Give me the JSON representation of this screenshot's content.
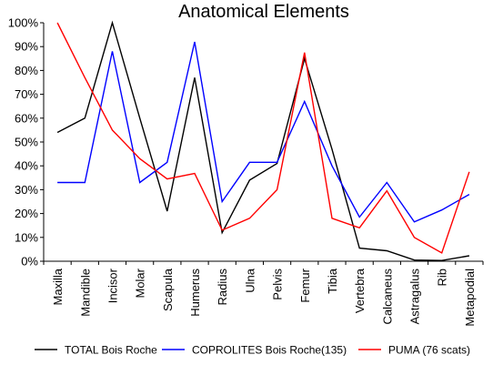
{
  "chart_data": {
    "type": "line",
    "title": "Anatomical Elements",
    "xlabel": "",
    "ylabel": "",
    "ylim": [
      0,
      100
    ],
    "y_ticks": [
      "0%",
      "10%",
      "20%",
      "30%",
      "40%",
      "50%",
      "60%",
      "70%",
      "80%",
      "90%",
      "100%"
    ],
    "grid": false,
    "legend_position": "bottom",
    "categories": [
      "Maxilla",
      "Mandible",
      "Incisor",
      "Molar",
      "Scapula",
      "Humerus",
      "Radius",
      "Ulna",
      "Pelvis",
      "Femur",
      "Tibia",
      "Vertebra",
      "Calcaneus",
      "Astragalus",
      "Rib",
      "Metapodial"
    ],
    "series": [
      {
        "name": "TOTAL Bois Roche",
        "color": "#000000",
        "values": [
          54,
          60,
          100,
          60,
          21,
          77,
          12,
          34,
          41,
          85,
          47,
          5.5,
          4.4,
          0.5,
          0.3,
          2.3
        ]
      },
      {
        "name": "COPROLITES Bois Roche(135)",
        "color": "#0000ff",
        "values": [
          33,
          33,
          88,
          33,
          41.5,
          92,
          25,
          41.5,
          41.5,
          67,
          40,
          18.5,
          33,
          16.5,
          21.5,
          28
        ]
      },
      {
        "name": "PUMA (76 scats)",
        "color": "#ff0000",
        "values": [
          100,
          77,
          55,
          43,
          34.5,
          36.8,
          13,
          18,
          30,
          87.5,
          18,
          14,
          29.5,
          10,
          3.5,
          37.5
        ]
      }
    ]
  }
}
